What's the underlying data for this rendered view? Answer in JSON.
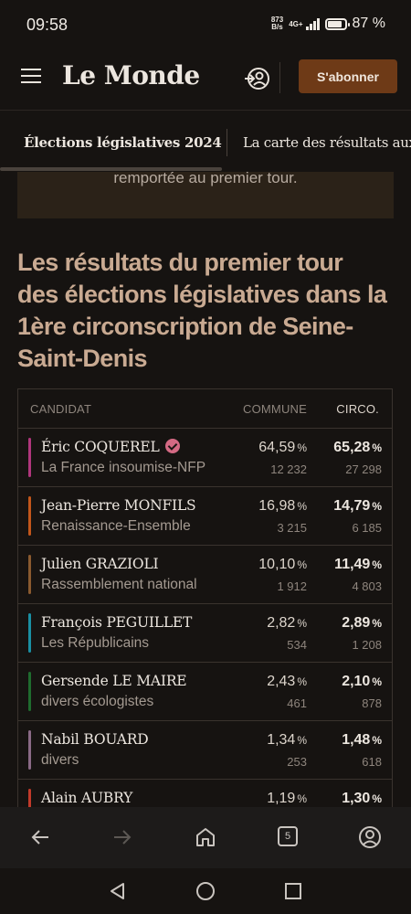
{
  "status_bar": {
    "time": "09:58",
    "speed_value": "873",
    "speed_unit": "B/s",
    "network": "4G+",
    "battery": "87 %",
    "battery_level": 0.87
  },
  "header": {
    "logo": "Le Monde",
    "subscribe_label": "S'abonner",
    "accent_color": "#6e3a17"
  },
  "tabs": [
    {
      "label": "Élections législatives 2024"
    },
    {
      "label": "La carte des résultats aux"
    }
  ],
  "callout": {
    "text": "remportée au premier tour."
  },
  "heading": "Les résultats du premier tour des élections législatives dans la 1ère circonscription de Seine-Saint-Denis",
  "table": {
    "headers": {
      "candidate": "CANDIDAT",
      "commune": "COMMUNE",
      "circo": "CIRCO."
    },
    "rows": [
      {
        "name": "Éric COQUEREL",
        "party": "La France insoumise-NFP",
        "commune_pct": "64,59",
        "commune_votes": "12 232",
        "circo_pct": "65,28",
        "circo_votes": "27 298",
        "color": "#b0367c",
        "elected": true
      },
      {
        "name": "Jean-Pierre MONFILS",
        "party": "Renaissance-Ensemble",
        "commune_pct": "16,98",
        "commune_votes": "3 215",
        "circo_pct": "14,79",
        "circo_votes": "6 185",
        "color": "#c2561b"
      },
      {
        "name": "Julien GRAZIOLI",
        "party": "Rassemblement national",
        "commune_pct": "10,10",
        "commune_votes": "1 912",
        "circo_pct": "11,49",
        "circo_votes": "4 803",
        "color": "#8a5a2f"
      },
      {
        "name": "François PEGUILLET",
        "party": "Les Républicains",
        "commune_pct": "2,82",
        "commune_votes": "534",
        "circo_pct": "2,89",
        "circo_votes": "1 208",
        "color": "#1a8fa3"
      },
      {
        "name": "Gersende LE MAIRE",
        "party": "divers écologistes",
        "commune_pct": "2,43",
        "commune_votes": "461",
        "circo_pct": "2,10",
        "circo_votes": "878",
        "color": "#1f6b2e"
      },
      {
        "name": "Nabil BOUARD",
        "party": "divers",
        "commune_pct": "1,34",
        "commune_votes": "253",
        "circo_pct": "1,48",
        "circo_votes": "618",
        "color": "#8a6a86"
      },
      {
        "name": "Alain AUBRY",
        "party": "",
        "commune_pct": "1,19",
        "commune_votes": "",
        "circo_pct": "1,30",
        "circo_votes": "",
        "color": "#c23a2a"
      }
    ],
    "pct_sign": "%"
  },
  "bottom_nav": {
    "tab_count": "5"
  }
}
